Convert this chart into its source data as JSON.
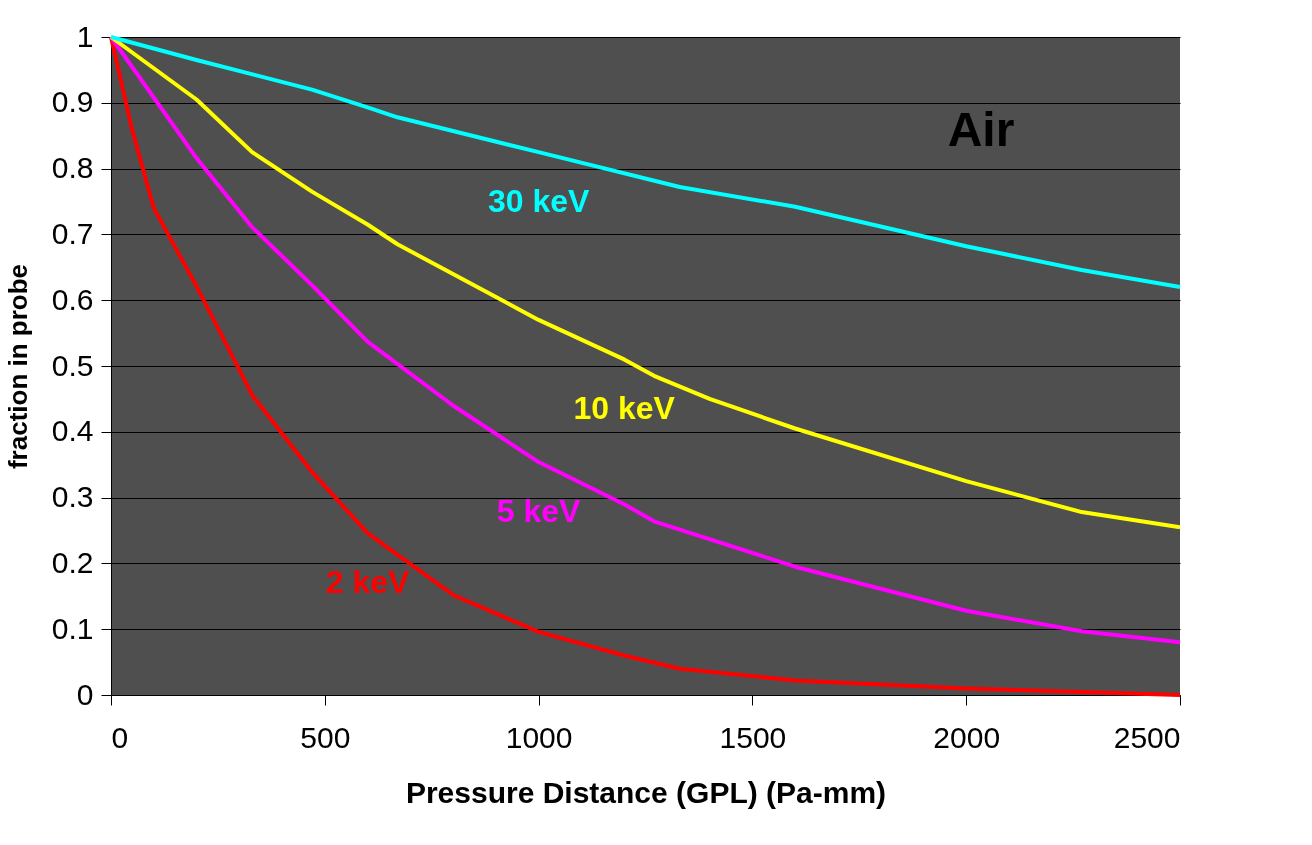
{
  "chart_data": {
    "type": "line",
    "xlabel": "Pressure Distance (GPL) (Pa-mm)",
    "ylabel": "fraction in probe",
    "xlim": [
      0,
      2500
    ],
    "xticks": [
      0,
      500,
      1000,
      1500,
      2000,
      2500
    ],
    "ylim": [
      0,
      1
    ],
    "yticks": [
      0,
      0.1,
      0.2,
      0.3,
      0.4,
      0.5,
      0.6,
      0.7,
      0.8,
      0.9,
      1
    ],
    "grid": "y",
    "legend": false,
    "marker": "none",
    "line_style": "solid",
    "annotations": [
      "Air"
    ],
    "series": [
      {
        "name": "2 keV",
        "color": "#ff0000",
        "x": [
          0,
          49,
          100,
          201,
          330,
          470,
          600,
          800,
          1000,
          1200,
          1330,
          1600,
          2000,
          2500
        ],
        "values": [
          1,
          0.86,
          0.74,
          0.62,
          0.456,
          0.339,
          0.246,
          0.152,
          0.096,
          0.06,
          0.04,
          0.022,
          0.01,
          0
        ]
      },
      {
        "name": "5 keV",
        "color": "#ff00ff",
        "x": [
          0,
          200,
          330,
          470,
          600,
          800,
          1000,
          1200,
          1270,
          1600,
          2000,
          2270,
          2500
        ],
        "values": [
          1,
          0.816,
          0.711,
          0.623,
          0.537,
          0.44,
          0.354,
          0.29,
          0.264,
          0.195,
          0.128,
          0.097,
          0.08
        ]
      },
      {
        "name": "10 keV",
        "color": "#ffff00",
        "x": [
          0,
          200,
          330,
          470,
          600,
          670,
          1000,
          1200,
          1270,
          1400,
          1600,
          2000,
          2270,
          2500
        ],
        "values": [
          1,
          0.905,
          0.825,
          0.765,
          0.715,
          0.685,
          0.57,
          0.51,
          0.485,
          0.45,
          0.405,
          0.325,
          0.278,
          0.255
        ]
      },
      {
        "name": "30 keV",
        "color": "#00ffff",
        "x": [
          0,
          200,
          470,
          600,
          670,
          1000,
          1330,
          1600,
          2000,
          2270,
          2500
        ],
        "values": [
          1,
          0.965,
          0.92,
          0.893,
          0.878,
          0.825,
          0.772,
          0.742,
          0.682,
          0.646,
          0.62
        ]
      }
    ]
  }
}
